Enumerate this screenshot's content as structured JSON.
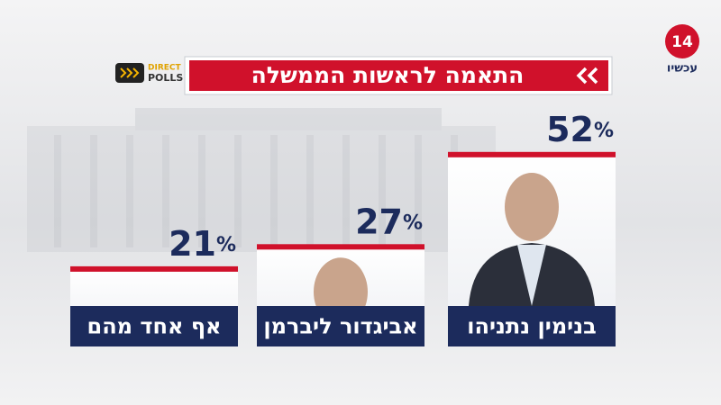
{
  "branding": {
    "channel_number": "14",
    "channel_name": "עכשיו",
    "poll_brand_top": "DIRECT",
    "poll_brand_bottom": "POLLS"
  },
  "chart_data": {
    "type": "bar",
    "title": "התאמה לראשות הממשלה",
    "categories": [
      "בנימין נתניהו",
      "אביגדור ליברמן",
      "אף אחד מהם"
    ],
    "values": [
      52,
      27,
      21
    ],
    "value_labels": [
      "52%",
      "27%",
      "21%"
    ],
    "color": "#d0112b",
    "label_box_color": "#1c2b5c"
  }
}
